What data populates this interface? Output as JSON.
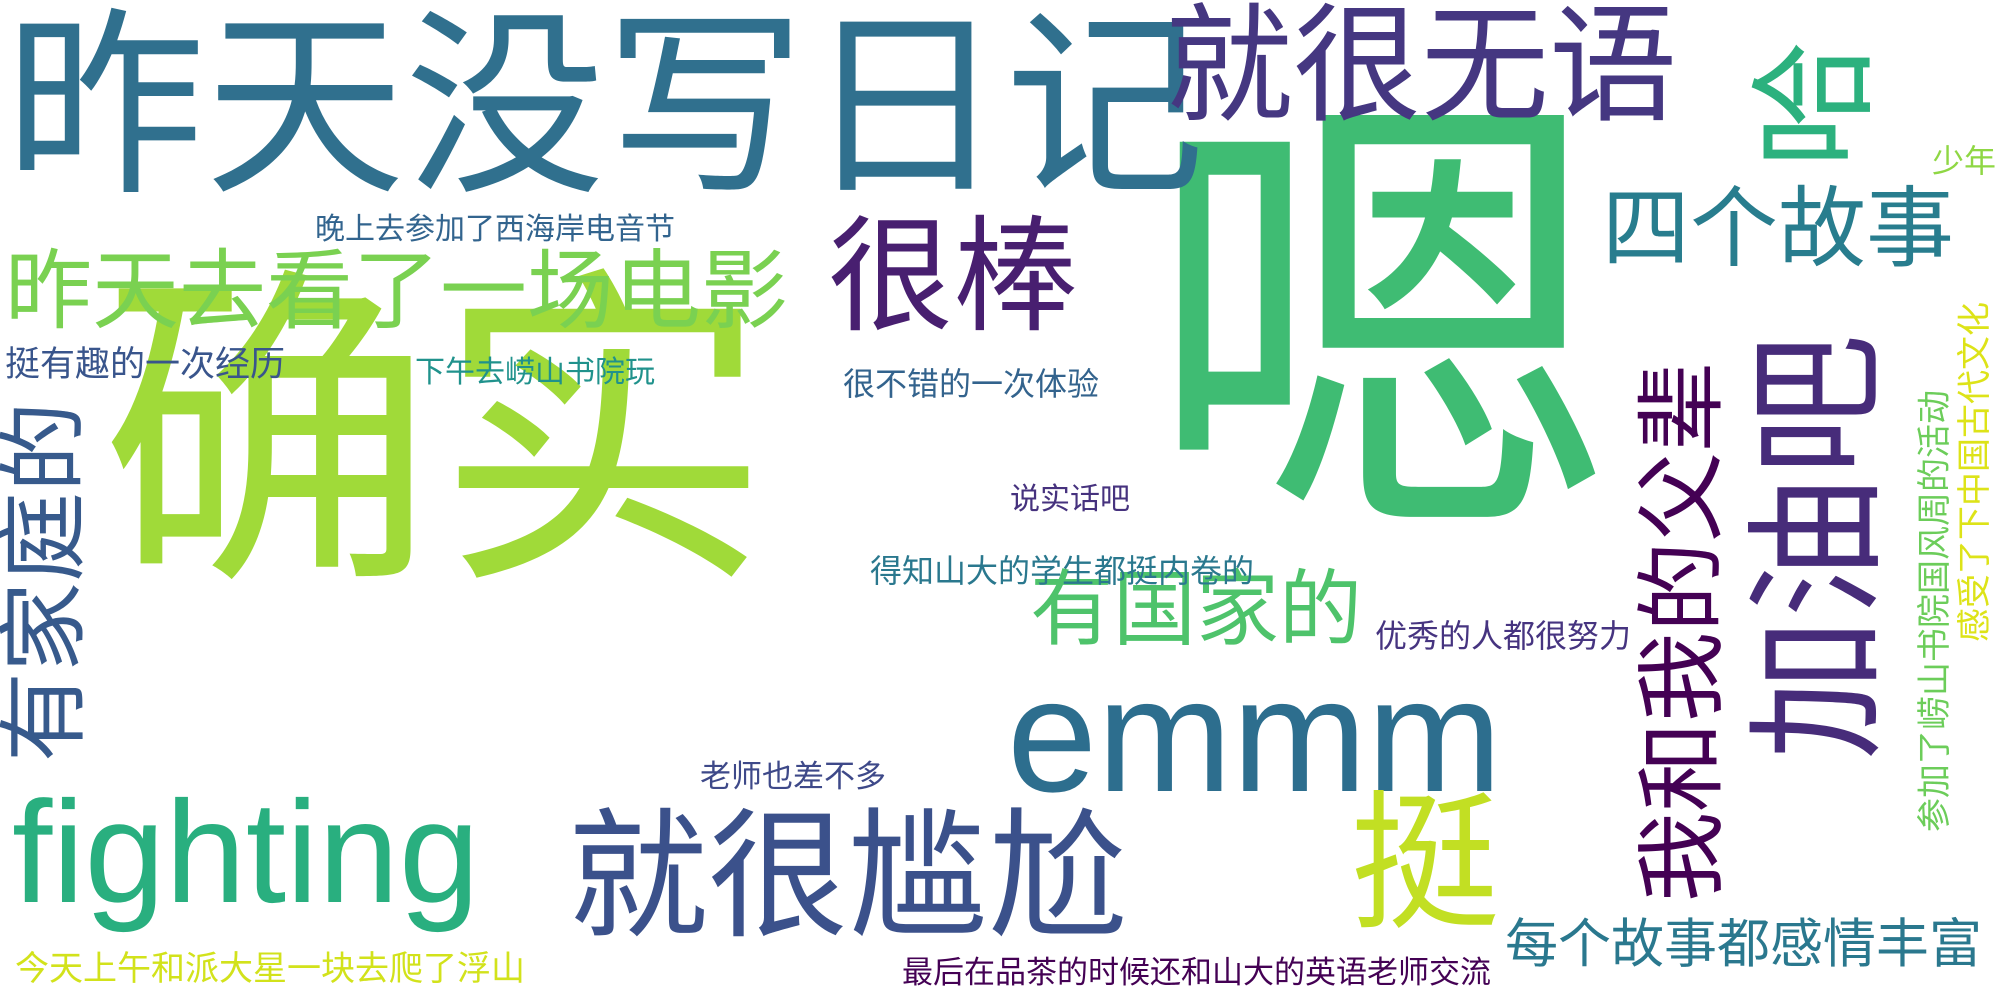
{
  "words": [
    {
      "text": "确实",
      "color": "#a0da39"
    },
    {
      "text": "嗯",
      "color": "#3fbc73"
    },
    {
      "text": "昨天没写日记",
      "color": "#30708e"
    },
    {
      "text": "就很无语",
      "color": "#453781"
    },
    {
      "text": "哈",
      "color": "#2cb17e"
    },
    {
      "text": "很棒",
      "color": "#481f70"
    },
    {
      "text": "四个故事",
      "color": "#287d8e"
    },
    {
      "text": "昨天去看了一场电影",
      "color": "#7ad151"
    },
    {
      "text": "加油吧",
      "color": "#472c7a"
    },
    {
      "text": "我和我的父辈",
      "color": "#440154"
    },
    {
      "text": "有家庭的",
      "color": "#375a8c"
    },
    {
      "text": "有国家的",
      "color": "#4ec36b"
    },
    {
      "text": "emmm",
      "color": "#2d6e8e"
    },
    {
      "text": "fighting",
      "color": "#29af7f"
    },
    {
      "text": "就很尴尬",
      "color": "#3b518b"
    },
    {
      "text": "挺",
      "color": "#c2df23"
    },
    {
      "text": "每个故事都感情丰富",
      "color": "#2a788e"
    },
    {
      "text": "晚上去参加了西海岸电音节",
      "color": "#32648e"
    },
    {
      "text": "挺有趣的一次经历",
      "color": "#39558c"
    },
    {
      "text": "下午去崂山书院玩",
      "color": "#20928c"
    },
    {
      "text": "很不错的一次体验",
      "color": "#33638d"
    },
    {
      "text": "说实话吧",
      "color": "#46327e"
    },
    {
      "text": "得知山大的学生都挺内卷的",
      "color": "#2a788e"
    },
    {
      "text": "优秀的人都很努力",
      "color": "#463480"
    },
    {
      "text": "老师也差不多",
      "color": "#3e4989"
    },
    {
      "text": "今天上午和派大星一块去爬了浮山",
      "color": "#d2e21b"
    },
    {
      "text": "最后在品茶的时候还和山大的英语老师交流",
      "color": "#440154"
    },
    {
      "text": "少年",
      "color": "#8fd744"
    },
    {
      "text": "感受了下中国古代文化",
      "color": "#dde318"
    },
    {
      "text": "参加了崂山书院国风周的活动",
      "color": "#6ccd5a"
    }
  ]
}
